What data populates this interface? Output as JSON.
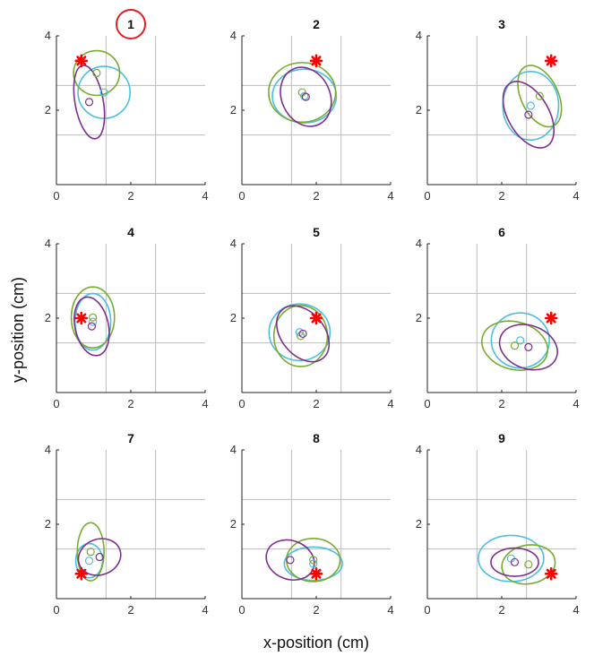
{
  "figure": {
    "xlabel": "x-position (cm)",
    "ylabel": "y-position (cm)",
    "colors": {
      "cyan": "#4dbedf",
      "green": "#77ac30",
      "purple": "#7e2f8e",
      "target": "#ff0000",
      "grid": "#bdbdbd",
      "axis": "#222222",
      "highlight": "#e02020"
    },
    "highlighted_panel": "1"
  },
  "chart_data": [
    {
      "type": "scatter",
      "title": "1",
      "xlim": [
        0,
        4
      ],
      "ylim": [
        0,
        4
      ],
      "xticks": [
        "0",
        "2",
        "4"
      ],
      "yticks": [
        "2",
        "4"
      ],
      "grid": true,
      "target": {
        "x": 0.67,
        "y": 3.33
      },
      "series": [
        {
          "color": "cyan",
          "center": {
            "x": 1.28,
            "y": 2.48
          },
          "ellipse": {
            "rx": 0.7,
            "ry": 0.7,
            "angle": 0
          }
        },
        {
          "color": "green",
          "center": {
            "x": 1.08,
            "y": 3.0
          },
          "ellipse": {
            "rx": 0.62,
            "ry": 0.6,
            "angle": 0
          }
        },
        {
          "color": "purple",
          "center": {
            "x": 0.88,
            "y": 2.22
          },
          "ellipse": {
            "rx": 0.38,
            "ry": 1.0,
            "angle": -10
          }
        }
      ]
    },
    {
      "type": "scatter",
      "title": "2",
      "xlim": [
        0,
        4
      ],
      "ylim": [
        0,
        4
      ],
      "xticks": [
        "0",
        "2",
        "4"
      ],
      "yticks": [
        "2",
        "4"
      ],
      "grid": true,
      "target": {
        "x": 2.0,
        "y": 3.33
      },
      "series": [
        {
          "color": "cyan",
          "center": {
            "x": 1.68,
            "y": 2.38
          },
          "ellipse": {
            "rx": 0.86,
            "ry": 0.72,
            "angle": 0
          }
        },
        {
          "color": "green",
          "center": {
            "x": 1.62,
            "y": 2.48
          },
          "ellipse": {
            "rx": 0.9,
            "ry": 0.8,
            "angle": 0
          }
        },
        {
          "color": "purple",
          "center": {
            "x": 1.72,
            "y": 2.36
          },
          "ellipse": {
            "rx": 0.65,
            "ry": 0.82,
            "angle": -25
          }
        }
      ]
    },
    {
      "type": "scatter",
      "title": "3",
      "xlim": [
        0,
        4
      ],
      "ylim": [
        0,
        4
      ],
      "xticks": [
        "0",
        "2",
        "4"
      ],
      "yticks": [
        "2",
        "4"
      ],
      "grid": true,
      "target": {
        "x": 3.33,
        "y": 3.33
      },
      "series": [
        {
          "color": "cyan",
          "center": {
            "x": 2.78,
            "y": 2.12
          },
          "ellipse": {
            "rx": 0.75,
            "ry": 0.92,
            "angle": 0
          }
        },
        {
          "color": "green",
          "center": {
            "x": 3.02,
            "y": 2.38
          },
          "ellipse": {
            "rx": 0.5,
            "ry": 0.88,
            "angle": -25
          }
        },
        {
          "color": "purple",
          "center": {
            "x": 2.72,
            "y": 1.88
          },
          "ellipse": {
            "rx": 0.55,
            "ry": 0.98,
            "angle": -30
          }
        }
      ]
    },
    {
      "type": "scatter",
      "title": "4",
      "xlim": [
        0,
        4
      ],
      "ylim": [
        0,
        4
      ],
      "xticks": [
        "0",
        "2",
        "4"
      ],
      "yticks": [
        "2",
        "4"
      ],
      "grid": true,
      "target": {
        "x": 0.67,
        "y": 2.0
      },
      "series": [
        {
          "color": "cyan",
          "center": {
            "x": 0.98,
            "y": 1.9
          },
          "ellipse": {
            "rx": 0.48,
            "ry": 0.76,
            "angle": 0
          }
        },
        {
          "color": "green",
          "center": {
            "x": 0.98,
            "y": 2.02
          },
          "ellipse": {
            "rx": 0.58,
            "ry": 0.82,
            "angle": 0
          }
        },
        {
          "color": "purple",
          "center": {
            "x": 0.95,
            "y": 1.78
          },
          "ellipse": {
            "rx": 0.45,
            "ry": 0.8,
            "angle": -12
          }
        }
      ]
    },
    {
      "type": "scatter",
      "title": "5",
      "xlim": [
        0,
        4
      ],
      "ylim": [
        0,
        4
      ],
      "xticks": [
        "0",
        "2",
        "4"
      ],
      "yticks": [
        "2",
        "4"
      ],
      "grid": true,
      "target": {
        "x": 2.0,
        "y": 2.0
      },
      "series": [
        {
          "color": "cyan",
          "center": {
            "x": 1.55,
            "y": 1.62
          },
          "ellipse": {
            "rx": 0.82,
            "ry": 0.76,
            "angle": 0
          }
        },
        {
          "color": "green",
          "center": {
            "x": 1.58,
            "y": 1.52
          },
          "ellipse": {
            "rx": 0.72,
            "ry": 0.82,
            "angle": 0
          }
        },
        {
          "color": "purple",
          "center": {
            "x": 1.64,
            "y": 1.58
          },
          "ellipse": {
            "rx": 0.58,
            "ry": 0.85,
            "angle": -40
          }
        }
      ]
    },
    {
      "type": "scatter",
      "title": "6",
      "xlim": [
        0,
        4
      ],
      "ylim": [
        0,
        4
      ],
      "xticks": [
        "0",
        "2",
        "4"
      ],
      "yticks": [
        "2",
        "4"
      ],
      "grid": true,
      "target": {
        "x": 3.33,
        "y": 2.0
      },
      "series": [
        {
          "color": "cyan",
          "center": {
            "x": 2.5,
            "y": 1.4
          },
          "ellipse": {
            "rx": 0.78,
            "ry": 0.74,
            "angle": 0
          }
        },
        {
          "color": "green",
          "center": {
            "x": 2.35,
            "y": 1.26
          },
          "ellipse": {
            "rx": 0.9,
            "ry": 0.64,
            "angle": 15
          }
        },
        {
          "color": "purple",
          "center": {
            "x": 2.72,
            "y": 1.22
          },
          "ellipse": {
            "rx": 0.8,
            "ry": 0.58,
            "angle": 20
          }
        }
      ]
    },
    {
      "type": "scatter",
      "title": "7",
      "xlim": [
        0,
        4
      ],
      "ylim": [
        0,
        4
      ],
      "xticks": [
        "0",
        "2",
        "4"
      ],
      "yticks": [
        "2",
        "4"
      ],
      "grid": true,
      "target": {
        "x": 0.67,
        "y": 0.67
      },
      "series": [
        {
          "color": "cyan",
          "center": {
            "x": 0.88,
            "y": 1.02
          },
          "ellipse": {
            "rx": 0.36,
            "ry": 0.46,
            "angle": 0
          }
        },
        {
          "color": "green",
          "center": {
            "x": 0.92,
            "y": 1.26
          },
          "ellipse": {
            "rx": 0.36,
            "ry": 0.78,
            "angle": 0
          }
        },
        {
          "color": "purple",
          "center": {
            "x": 1.16,
            "y": 1.12
          },
          "ellipse": {
            "rx": 0.58,
            "ry": 0.48,
            "angle": -20
          }
        }
      ]
    },
    {
      "type": "scatter",
      "title": "8",
      "xlim": [
        0,
        4
      ],
      "ylim": [
        0,
        4
      ],
      "xticks": [
        "0",
        "2",
        "4"
      ],
      "yticks": [
        "2",
        "4"
      ],
      "grid": true,
      "target": {
        "x": 2.0,
        "y": 0.67
      },
      "series": [
        {
          "color": "cyan",
          "center": {
            "x": 1.92,
            "y": 0.94
          },
          "ellipse": {
            "rx": 0.78,
            "ry": 0.45,
            "angle": 0
          }
        },
        {
          "color": "green",
          "center": {
            "x": 1.92,
            "y": 1.04
          },
          "ellipse": {
            "rx": 0.72,
            "ry": 0.58,
            "angle": 0
          }
        },
        {
          "color": "purple",
          "center": {
            "x": 1.3,
            "y": 1.04
          },
          "ellipse": {
            "rx": 0.66,
            "ry": 0.52,
            "angle": 20
          }
        }
      ]
    },
    {
      "type": "scatter",
      "title": "9",
      "xlim": [
        0,
        4
      ],
      "ylim": [
        0,
        4
      ],
      "xticks": [
        "0",
        "2",
        "4"
      ],
      "yticks": [
        "2",
        "4"
      ],
      "grid": true,
      "target": {
        "x": 3.33,
        "y": 0.67
      },
      "series": [
        {
          "color": "cyan",
          "center": {
            "x": 2.25,
            "y": 1.08
          },
          "ellipse": {
            "rx": 0.88,
            "ry": 0.62,
            "angle": 0
          }
        },
        {
          "color": "green",
          "center": {
            "x": 2.72,
            "y": 0.92
          },
          "ellipse": {
            "rx": 0.72,
            "ry": 0.52,
            "angle": -10
          }
        },
        {
          "color": "purple",
          "center": {
            "x": 2.35,
            "y": 0.98
          },
          "ellipse": {
            "rx": 0.64,
            "ry": 0.38,
            "angle": 0
          }
        }
      ]
    }
  ]
}
